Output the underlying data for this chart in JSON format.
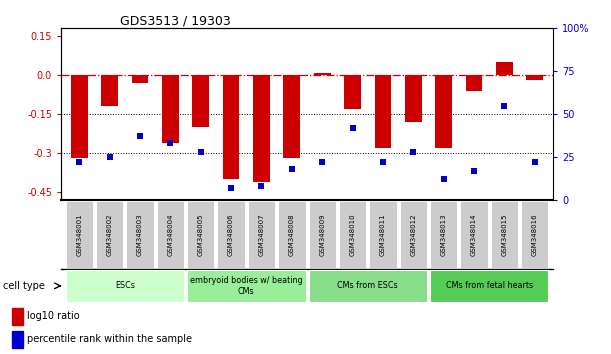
{
  "title": "GDS3513 / 19303",
  "samples": [
    "GSM348001",
    "GSM348002",
    "GSM348003",
    "GSM348004",
    "GSM348005",
    "GSM348006",
    "GSM348007",
    "GSM348008",
    "GSM348009",
    "GSM348010",
    "GSM348011",
    "GSM348012",
    "GSM348013",
    "GSM348014",
    "GSM348015",
    "GSM348016"
  ],
  "log10_ratio": [
    -0.32,
    -0.12,
    -0.03,
    -0.26,
    -0.2,
    -0.4,
    -0.41,
    -0.32,
    0.01,
    -0.13,
    -0.28,
    -0.18,
    -0.28,
    -0.06,
    0.05,
    -0.02
  ],
  "percentile_rank": [
    22,
    25,
    37,
    33,
    28,
    7,
    8,
    18,
    22,
    42,
    22,
    28,
    12,
    17,
    55,
    22
  ],
  "bar_color": "#cc0000",
  "dot_color": "#0000cc",
  "ylim_left": [
    -0.48,
    0.18
  ],
  "ylim_right": [
    0,
    100
  ],
  "yticks_left": [
    0.15,
    0.0,
    -0.15,
    -0.3,
    -0.45
  ],
  "yticks_right": [
    100,
    75,
    50,
    25,
    0
  ],
  "cell_type_groups": [
    {
      "label": "ESCs",
      "start": 0,
      "end": 3,
      "color": "#ccffcc"
    },
    {
      "label": "embryoid bodies w/ beating\nCMs",
      "start": 4,
      "end": 7,
      "color": "#99ee99"
    },
    {
      "label": "CMs from ESCs",
      "start": 8,
      "end": 11,
      "color": "#88dd88"
    },
    {
      "label": "CMs from fetal hearts",
      "start": 12,
      "end": 15,
      "color": "#55cc55"
    }
  ],
  "cell_type_label": "cell type",
  "legend_red_label": "log10 ratio",
  "legend_blue_label": "percentile rank within the sample",
  "sample_box_color": "#cccccc",
  "bg_color": "#ffffff"
}
